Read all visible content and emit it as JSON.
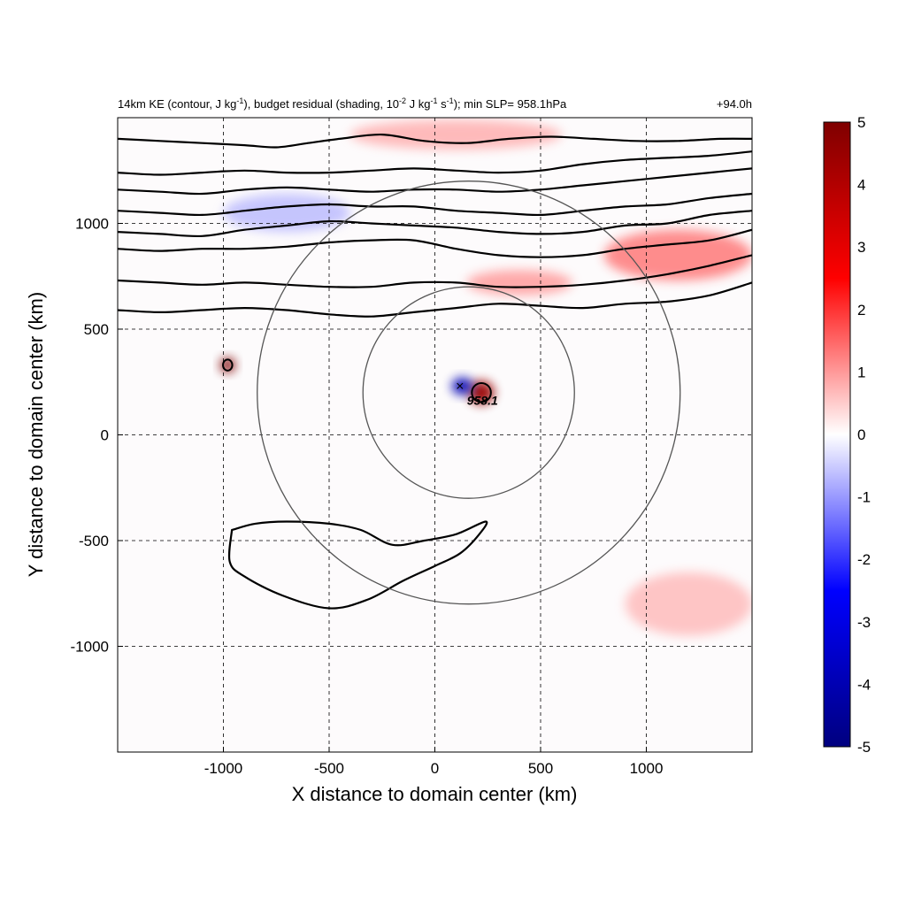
{
  "chart_data": {
    "type": "contour",
    "title_left_parts": {
      "t1": "14km KE (contour, J kg",
      "s1": "-1",
      "t2": "), budget residual (shading, 10",
      "s2": "-2",
      "t3": " J kg",
      "s3": "-1",
      "t4": " s",
      "s4": "-1",
      "t5": "); min SLP= 958.1hPa"
    },
    "title_right": "+94.0h",
    "xlabel": "X distance to domain center (km)",
    "ylabel": "Y distance to domain center (km)",
    "xlim": [
      -1500,
      1500
    ],
    "ylim": [
      -1500,
      1500
    ],
    "xticks": [
      {
        "value": -1000,
        "label": "-1000"
      },
      {
        "value": -500,
        "label": "-500"
      },
      {
        "value": 0,
        "label": "0"
      },
      {
        "value": 500,
        "label": "500"
      },
      {
        "value": 1000,
        "label": "1000"
      }
    ],
    "yticks": [
      {
        "value": -1000,
        "label": "-1000"
      },
      {
        "value": -500,
        "label": "-500"
      },
      {
        "value": 0,
        "label": "0"
      },
      {
        "value": 500,
        "label": "500"
      },
      {
        "value": 1000,
        "label": "1000"
      }
    ],
    "grid": "dashed",
    "colorbar": {
      "range": [
        -5,
        5
      ],
      "ticks": [
        {
          "value": 5,
          "label": "5"
        },
        {
          "value": 4,
          "label": "4"
        },
        {
          "value": 3,
          "label": "3"
        },
        {
          "value": 2,
          "label": "2"
        },
        {
          "value": 1,
          "label": "1"
        },
        {
          "value": 0,
          "label": "0"
        },
        {
          "value": -1,
          "label": "-1"
        },
        {
          "value": -2,
          "label": "-2"
        },
        {
          "value": -3,
          "label": "-3"
        },
        {
          "value": -4,
          "label": "-4"
        },
        {
          "value": -5,
          "label": "-5"
        }
      ],
      "colors": [
        "#00007f",
        "#0000ff",
        "#ffffff",
        "#ff0000",
        "#7f0000"
      ]
    },
    "storm_center": {
      "x": 160,
      "y": 200,
      "label": "958.1"
    },
    "range_rings": [
      {
        "cx": 160,
        "cy": 200,
        "radius_km": 500
      },
      {
        "cx": 160,
        "cy": 200,
        "radius_km": 1000
      }
    ],
    "ke_contours": [
      {
        "name": "ke-contour-north-1",
        "points": [
          [
            -1500,
            590
          ],
          [
            -1300,
            580
          ],
          [
            -1100,
            590
          ],
          [
            -900,
            600
          ],
          [
            -700,
            590
          ],
          [
            -500,
            570
          ],
          [
            -300,
            560
          ],
          [
            -100,
            580
          ],
          [
            100,
            600
          ],
          [
            300,
            620
          ],
          [
            500,
            610
          ],
          [
            700,
            600
          ],
          [
            900,
            620
          ],
          [
            1100,
            630
          ],
          [
            1300,
            660
          ],
          [
            1500,
            720
          ]
        ]
      },
      {
        "name": "ke-contour-north-2",
        "points": [
          [
            -1500,
            730
          ],
          [
            -1300,
            720
          ],
          [
            -1100,
            710
          ],
          [
            -900,
            720
          ],
          [
            -700,
            710
          ],
          [
            -500,
            700
          ],
          [
            -300,
            700
          ],
          [
            -100,
            720
          ],
          [
            100,
            720
          ],
          [
            300,
            700
          ],
          [
            500,
            700
          ],
          [
            700,
            710
          ],
          [
            900,
            730
          ],
          [
            1100,
            760
          ],
          [
            1300,
            800
          ],
          [
            1500,
            850
          ]
        ]
      },
      {
        "name": "ke-contour-north-3",
        "points": [
          [
            -1500,
            880
          ],
          [
            -1300,
            870
          ],
          [
            -1100,
            880
          ],
          [
            -900,
            880
          ],
          [
            -700,
            890
          ],
          [
            -500,
            910
          ],
          [
            -300,
            920
          ],
          [
            -100,
            920
          ],
          [
            100,
            880
          ],
          [
            300,
            850
          ],
          [
            500,
            840
          ],
          [
            700,
            850
          ],
          [
            900,
            880
          ],
          [
            1100,
            900
          ],
          [
            1300,
            920
          ],
          [
            1500,
            970
          ]
        ]
      },
      {
        "name": "ke-contour-north-4",
        "points": [
          [
            -1500,
            960
          ],
          [
            -1300,
            950
          ],
          [
            -1100,
            940
          ],
          [
            -900,
            970
          ],
          [
            -700,
            990
          ],
          [
            -500,
            1010
          ],
          [
            -300,
            1000
          ],
          [
            -100,
            990
          ],
          [
            100,
            980
          ],
          [
            300,
            960
          ],
          [
            500,
            950
          ],
          [
            700,
            960
          ],
          [
            900,
            990
          ],
          [
            1100,
            1000
          ],
          [
            1300,
            1040
          ],
          [
            1500,
            1060
          ]
        ]
      },
      {
        "name": "ke-contour-north-5",
        "points": [
          [
            -1500,
            1060
          ],
          [
            -1300,
            1050
          ],
          [
            -1100,
            1040
          ],
          [
            -900,
            1060
          ],
          [
            -700,
            1080
          ],
          [
            -500,
            1090
          ],
          [
            -300,
            1080
          ],
          [
            -100,
            1080
          ],
          [
            100,
            1060
          ],
          [
            300,
            1050
          ],
          [
            500,
            1040
          ],
          [
            700,
            1060
          ],
          [
            900,
            1080
          ],
          [
            1100,
            1090
          ],
          [
            1300,
            1120
          ],
          [
            1500,
            1140
          ]
        ]
      },
      {
        "name": "ke-contour-north-6",
        "points": [
          [
            -1500,
            1160
          ],
          [
            -1300,
            1150
          ],
          [
            -1100,
            1140
          ],
          [
            -900,
            1160
          ],
          [
            -700,
            1170
          ],
          [
            -500,
            1160
          ],
          [
            -300,
            1150
          ],
          [
            -100,
            1160
          ],
          [
            100,
            1160
          ],
          [
            300,
            1150
          ],
          [
            500,
            1160
          ],
          [
            700,
            1180
          ],
          [
            900,
            1200
          ],
          [
            1100,
            1220
          ],
          [
            1300,
            1240
          ],
          [
            1500,
            1260
          ]
        ]
      },
      {
        "name": "ke-contour-north-7",
        "points": [
          [
            -1500,
            1240
          ],
          [
            -1300,
            1230
          ],
          [
            -1100,
            1240
          ],
          [
            -900,
            1250
          ],
          [
            -700,
            1240
          ],
          [
            -500,
            1240
          ],
          [
            -300,
            1250
          ],
          [
            -100,
            1260
          ],
          [
            100,
            1250
          ],
          [
            300,
            1240
          ],
          [
            500,
            1250
          ],
          [
            700,
            1280
          ],
          [
            900,
            1300
          ],
          [
            1100,
            1310
          ],
          [
            1300,
            1320
          ],
          [
            1500,
            1340
          ]
        ]
      },
      {
        "name": "ke-contour-north-8",
        "points": [
          [
            -1500,
            1400
          ],
          [
            -1300,
            1390
          ],
          [
            -1100,
            1380
          ],
          [
            -900,
            1370
          ],
          [
            -750,
            1360
          ],
          [
            -600,
            1380
          ],
          [
            -450,
            1400
          ],
          [
            -250,
            1420
          ],
          [
            -50,
            1390
          ],
          [
            150,
            1380
          ],
          [
            350,
            1400
          ],
          [
            550,
            1410
          ],
          [
            750,
            1400
          ],
          [
            950,
            1390
          ],
          [
            1150,
            1390
          ],
          [
            1350,
            1400
          ],
          [
            1500,
            1400
          ]
        ]
      },
      {
        "name": "ke-contour-south-blob",
        "points": [
          [
            -960,
            -450
          ],
          [
            -850,
            -420
          ],
          [
            -700,
            -410
          ],
          [
            -500,
            -420
          ],
          [
            -350,
            -450
          ],
          [
            -200,
            -520
          ],
          [
            -50,
            -500
          ],
          [
            100,
            -470
          ],
          [
            240,
            -410
          ],
          [
            210,
            -470
          ],
          [
            120,
            -560
          ],
          [
            0,
            -620
          ],
          [
            -150,
            -690
          ],
          [
            -320,
            -780
          ],
          [
            -500,
            -820
          ],
          [
            -720,
            -760
          ],
          [
            -900,
            -670
          ],
          [
            -970,
            -600
          ],
          [
            -960,
            -450
          ]
        ]
      }
    ],
    "residual_shading": [
      {
        "name": "shade-storm-positive",
        "x": 220,
        "y": 200,
        "rx": 60,
        "ry": 55,
        "value": 4.5
      },
      {
        "name": "shade-storm-negative",
        "x": 130,
        "y": 230,
        "rx": 50,
        "ry": 40,
        "value": -4.0
      },
      {
        "name": "shade-west-positive",
        "x": -980,
        "y": 330,
        "rx": 35,
        "ry": 35,
        "value": 5.0
      },
      {
        "name": "shade-northeast-band",
        "x": 1150,
        "y": 850,
        "rx": 350,
        "ry": 120,
        "value": 2.0
      },
      {
        "name": "shade-north-band",
        "x": 400,
        "y": 720,
        "rx": 250,
        "ry": 60,
        "value": 1.5
      },
      {
        "name": "shade-northwest-negative",
        "x": -700,
        "y": 1050,
        "rx": 300,
        "ry": 90,
        "value": -1.0
      },
      {
        "name": "shade-southeast-positive",
        "x": 1200,
        "y": -800,
        "rx": 300,
        "ry": 150,
        "value": 1.0
      },
      {
        "name": "shade-top-positive",
        "x": 100,
        "y": 1420,
        "rx": 500,
        "ry": 70,
        "value": 1.2
      }
    ]
  }
}
